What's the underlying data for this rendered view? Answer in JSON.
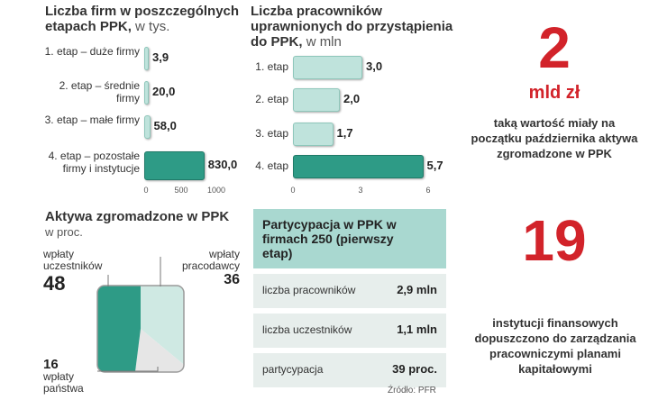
{
  "colors": {
    "bar_light": "#bfe3dc",
    "bar_dark": "#2e9b86",
    "accent": "#d2232a",
    "table_header": "#a9d8d0",
    "table_row_alt": "#e7eeec",
    "pie_light": "#cfe9e3",
    "pie_gray": "#e6e6e6"
  },
  "chart_firms": {
    "title": "Liczba firm w poszczególnych etapach PPK,",
    "unit": "w tys.",
    "type": "bar",
    "categories": [
      "1. etap – duże firmy",
      "2. etap – średnie firmy",
      "3. etap – małe firmy",
      "4. etap – pozostałe firmy i instytucje"
    ],
    "values": [
      3.9,
      20.0,
      58.0,
      830.0
    ],
    "value_labels": [
      "3,9",
      "20,0",
      "58,0",
      "830,0"
    ],
    "xlim": [
      0,
      1000
    ],
    "ticks": [
      "0",
      "500",
      "1000"
    ]
  },
  "chart_workers": {
    "title": "Liczba pracowników uprawnionych do przystąpienia do PPK,",
    "unit": "w mln",
    "type": "bar",
    "categories": [
      "1. etap",
      "2. etap",
      "3. etap",
      "4. etap"
    ],
    "values": [
      3.0,
      2.0,
      1.7,
      5.7
    ],
    "value_labels": [
      "3,0",
      "2,0",
      "1,7",
      "5,7"
    ],
    "xlim": [
      0,
      6
    ],
    "ticks": [
      "0",
      "3",
      "6"
    ]
  },
  "chart_assets": {
    "title": "Aktywa zgromadzone w PPK",
    "unit": "w proc.",
    "type": "pie",
    "slices": [
      {
        "label": "wpłaty uczestników",
        "value": 48
      },
      {
        "label": "wpłaty pracodawcy",
        "value": 36
      },
      {
        "label": "wpłaty państwa",
        "value": 16
      }
    ]
  },
  "fact1": {
    "number": "2",
    "unit": "mld zł",
    "text": "taką wartość miały na początku października aktywa zgromadzone w PPK"
  },
  "fact2": {
    "number": "19",
    "text": "instytucji finansowych dopuszczono do zarządzania pracowniczymi planami kapitałowymi"
  },
  "table": {
    "title": "Partycypacja w PPK w firmach 250 (pierwszy etap)",
    "rows": [
      {
        "label": "liczba pracowników",
        "value": "2,9 mln"
      },
      {
        "label": "liczba uczestników",
        "value": "1,1 mln"
      },
      {
        "label": "partycypacja",
        "value": "39 proc."
      }
    ]
  },
  "source": "Źródło: PFR"
}
